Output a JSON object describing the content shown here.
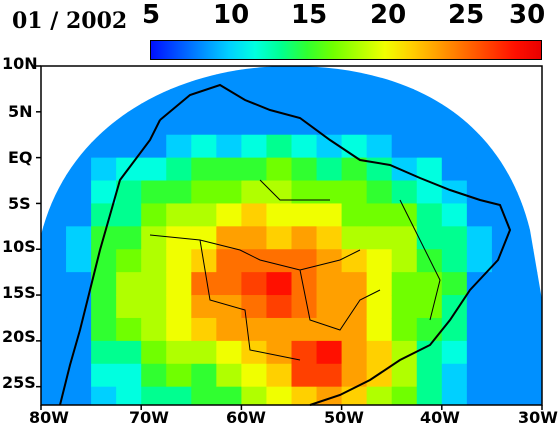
{
  "title": "01 / 2002",
  "colorbar": {
    "ticks": [
      "5",
      "10",
      "15",
      "20",
      "25",
      "30"
    ],
    "colors": [
      "#0010ff",
      "#0050ff",
      "#0090ff",
      "#00d0ff",
      "#00ffe0",
      "#00ff90",
      "#30ff30",
      "#70ff00",
      "#b0ff00",
      "#f0ff00",
      "#ffd000",
      "#ffa000",
      "#ff7000",
      "#ff4000",
      "#ff1000",
      "#e80000"
    ]
  },
  "lat_labels": [
    "10N",
    "5N",
    "EQ",
    "5S",
    "10S",
    "15S",
    "20S",
    "25S"
  ],
  "lon_labels": [
    "80W",
    "70W",
    "60W",
    "50W",
    "40W",
    "30W"
  ],
  "map": {
    "lon_range": [
      -80,
      -30
    ],
    "lat_range": [
      -27,
      10
    ],
    "value_range": [
      5,
      30
    ]
  }
}
